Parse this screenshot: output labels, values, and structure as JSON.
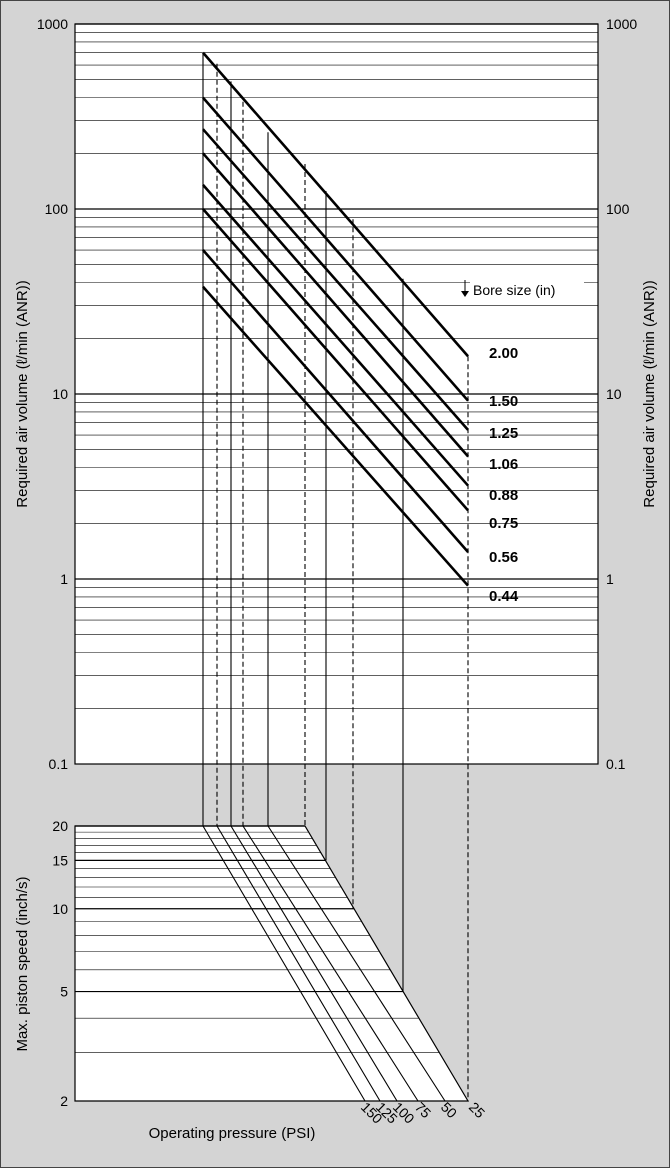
{
  "chart_data": [
    {
      "type": "line",
      "title": "",
      "ylabel": "Required air volume (ℓ/min (ANR))",
      "yscale": "log",
      "ylim": [
        0.1,
        1000
      ],
      "y_ticks": [
        "1000",
        "100",
        "10",
        "1",
        "0.1"
      ],
      "legend_title": "Bore size (in)",
      "series": [
        {
          "name": "2.00",
          "values_at": {
            "150": 700,
            "125": 610,
            "100": 490,
            "75": 380,
            "50": 260,
            "25": 16
          }
        },
        {
          "name": "1.50",
          "values_at": {
            "150": 400,
            "25": 9.2
          }
        },
        {
          "name": "1.25",
          "values_at": {
            "150": 270,
            "25": 6.4
          }
        },
        {
          "name": "1.06",
          "values_at": {
            "150": 200,
            "25": 4.6
          }
        },
        {
          "name": "0.88",
          "values_at": {
            "150": 135,
            "25": 3.2
          }
        },
        {
          "name": "0.75",
          "values_at": {
            "150": 100,
            "25": 2.35
          }
        },
        {
          "name": "0.56",
          "values_at": {
            "150": 60,
            "25": 1.4
          }
        },
        {
          "name": "0.44",
          "values_at": {
            "150": 38,
            "25": 0.92
          }
        }
      ]
    },
    {
      "type": "line",
      "title": "",
      "ylabel": "Max. piston speed (inch/s)",
      "xlabel": "Operating pressure (PSI)",
      "yscale": "log",
      "ylim": [
        2,
        20
      ],
      "y_ticks": [
        "20",
        "15",
        "10",
        "5",
        "2"
      ],
      "x_ticks": [
        "150",
        "125",
        "100",
        "75",
        "50",
        "25"
      ],
      "pressure_lines": [
        {
          "name": "150",
          "speed_at_pressure_axis": 20
        },
        {
          "name": "125",
          "speed_at_pressure_axis": 20
        },
        {
          "name": "100",
          "speed_at_pressure_axis": 20
        },
        {
          "name": "75",
          "speed_at_pressure_axis": 20
        },
        {
          "name": "50",
          "speed_at_pressure_axis": 20
        },
        {
          "name": "25",
          "speed_at_pressure_axis": 2
        }
      ]
    }
  ]
}
